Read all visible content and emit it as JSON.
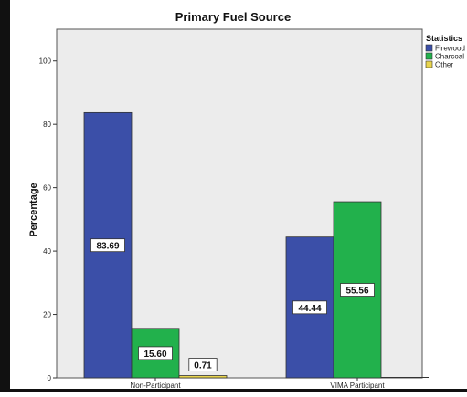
{
  "chart_data": {
    "type": "bar",
    "title": "Primary Fuel Source",
    "ylabel": "Percentage",
    "xlabel": "",
    "categories": [
      "Non-Participant",
      "VIMA Participant"
    ],
    "ylim": [
      0,
      110
    ],
    "yticks": [
      0,
      20,
      40,
      60,
      80,
      100
    ],
    "legend": {
      "title": "Statistics",
      "position": "top-right",
      "entries": [
        "Firewood",
        "Charcoal",
        "Other"
      ]
    },
    "series": [
      {
        "name": "Firewood",
        "color": "#3b4fa8",
        "values": [
          83.69,
          44.44
        ],
        "labels": [
          "83.69",
          "44.44"
        ]
      },
      {
        "name": "Charcoal",
        "color": "#22b14c",
        "values": [
          15.6,
          55.56
        ],
        "labels": [
          "15.60",
          "55.56"
        ]
      },
      {
        "name": "Other",
        "color": "#e8d44d",
        "values": [
          0.71,
          0.0
        ],
        "labels": [
          "0.71",
          ""
        ]
      }
    ],
    "plot_background": "#ececec",
    "grid": false
  }
}
